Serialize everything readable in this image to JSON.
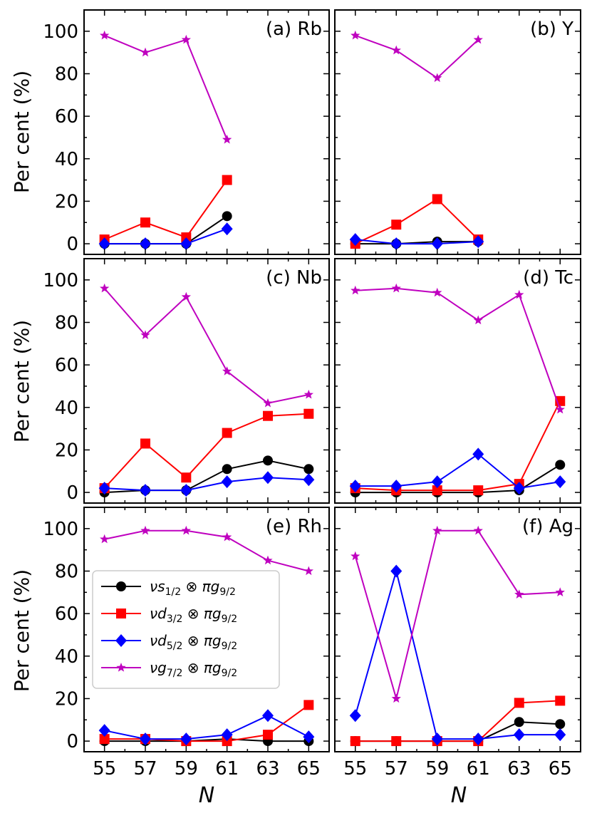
{
  "figure": {
    "xlabel": "N",
    "ylabel": "Per cent (%)"
  },
  "chart_data": [
    {
      "type": "line",
      "panel_label": "(a) Rb",
      "x": [
        55,
        57,
        59,
        61
      ],
      "ylim": [
        -5,
        110
      ],
      "xlim": [
        54,
        66
      ],
      "series": [
        {
          "name": "νs1/2 ⊗ πg9/2",
          "values": [
            0,
            0,
            0,
            13
          ]
        },
        {
          "name": "νd3/2 ⊗ πg9/2",
          "values": [
            2,
            10,
            3,
            30
          ]
        },
        {
          "name": "νd5/2 ⊗ πg9/2",
          "values": [
            0,
            0,
            0,
            7
          ]
        },
        {
          "name": "νg7/2 ⊗ πg9/2",
          "values": [
            98,
            90,
            96,
            49
          ]
        }
      ]
    },
    {
      "type": "line",
      "panel_label": "(b) Y",
      "x": [
        55,
        57,
        59,
        61
      ],
      "ylim": [
        -5,
        110
      ],
      "xlim": [
        54,
        66
      ],
      "series": [
        {
          "name": "νs1/2 ⊗ πg9/2",
          "values": [
            0,
            0,
            1,
            1
          ]
        },
        {
          "name": "νd3/2 ⊗ πg9/2",
          "values": [
            0,
            9,
            21,
            2
          ]
        },
        {
          "name": "νd5/2 ⊗ πg9/2",
          "values": [
            2,
            0,
            0,
            1
          ]
        },
        {
          "name": "νg7/2 ⊗ πg9/2",
          "values": [
            98,
            91,
            78,
            96
          ]
        }
      ]
    },
    {
      "type": "line",
      "panel_label": "(c) Nb",
      "x": [
        55,
        57,
        59,
        61,
        63,
        65
      ],
      "ylim": [
        -5,
        110
      ],
      "xlim": [
        54,
        66
      ],
      "series": [
        {
          "name": "νs1/2 ⊗ πg9/2",
          "values": [
            0,
            1,
            1,
            11,
            15,
            11
          ]
        },
        {
          "name": "νd3/2 ⊗ πg9/2",
          "values": [
            2,
            23,
            7,
            28,
            36,
            37
          ]
        },
        {
          "name": "νd5/2 ⊗ πg9/2",
          "values": [
            2,
            1,
            1,
            5,
            7,
            6
          ]
        },
        {
          "name": "νg7/2 ⊗ πg9/2",
          "values": [
            96,
            74,
            92,
            57,
            42,
            46
          ]
        }
      ]
    },
    {
      "type": "line",
      "panel_label": "(d) Tc",
      "x": [
        55,
        57,
        59,
        61,
        63,
        65
      ],
      "ylim": [
        -5,
        110
      ],
      "xlim": [
        54,
        66
      ],
      "series": [
        {
          "name": "νs1/2 ⊗ πg9/2",
          "values": [
            0,
            0,
            0,
            0,
            1,
            13
          ]
        },
        {
          "name": "νd3/2 ⊗ πg9/2",
          "values": [
            2,
            1,
            1,
            1,
            4,
            43
          ]
        },
        {
          "name": "νd5/2 ⊗ πg9/2",
          "values": [
            3,
            3,
            5,
            18,
            2,
            5
          ]
        },
        {
          "name": "νg7/2 ⊗ πg9/2",
          "values": [
            95,
            96,
            94,
            81,
            93,
            39
          ]
        }
      ]
    },
    {
      "type": "line",
      "panel_label": "(e) Rh",
      "x": [
        55,
        57,
        59,
        61,
        63,
        65
      ],
      "ylim": [
        -5,
        110
      ],
      "xlim": [
        54,
        66
      ],
      "series": [
        {
          "name": "νs1/2 ⊗ πg9/2",
          "values": [
            0,
            0,
            0,
            1,
            0,
            0
          ]
        },
        {
          "name": "νd3/2 ⊗ πg9/2",
          "values": [
            1,
            1,
            0,
            0,
            3,
            17
          ]
        },
        {
          "name": "νd5/2 ⊗ πg9/2",
          "values": [
            5,
            1,
            1,
            3,
            12,
            2
          ]
        },
        {
          "name": "νg7/2 ⊗ πg9/2",
          "values": [
            95,
            99,
            99,
            96,
            85,
            80
          ]
        }
      ]
    },
    {
      "type": "line",
      "panel_label": "(f) Ag",
      "x": [
        55,
        57,
        59,
        61,
        63,
        65
      ],
      "ylim": [
        -5,
        110
      ],
      "xlim": [
        54,
        66
      ],
      "series": [
        {
          "name": "νs1/2 ⊗ πg9/2",
          "values": [
            0,
            0,
            0,
            0,
            9,
            8
          ]
        },
        {
          "name": "νd3/2 ⊗ πg9/2",
          "values": [
            0,
            0,
            0,
            0,
            18,
            19
          ]
        },
        {
          "name": "νd5/2 ⊗ πg9/2",
          "values": [
            12,
            80,
            1,
            1,
            3,
            3
          ]
        },
        {
          "name": "νg7/2 ⊗ πg9/2",
          "values": [
            87,
            20,
            99,
            99,
            69,
            70
          ]
        }
      ]
    }
  ],
  "x_ticks": [
    55,
    57,
    59,
    61,
    63,
    65
  ],
  "y_ticks": [
    0,
    20,
    40,
    60,
    80,
    100
  ],
  "series_styles": [
    {
      "color": "#000000",
      "marker": "circle"
    },
    {
      "color": "#ff0000",
      "marker": "square"
    },
    {
      "color": "#0000ff",
      "marker": "diamond"
    },
    {
      "color": "#bf00bf",
      "marker": "star"
    }
  ],
  "legend": {
    "placement": "panel (e), center-left",
    "entries": [
      {
        "prefix": "νs",
        "sub1": "1/2",
        "mid": " ⊗ πg",
        "sub2": "9/2"
      },
      {
        "prefix": "νd",
        "sub1": "3/2",
        "mid": " ⊗ πg",
        "sub2": "9/2"
      },
      {
        "prefix": "νd",
        "sub1": "5/2",
        "mid": " ⊗ πg",
        "sub2": "9/2"
      },
      {
        "prefix": "νg",
        "sub1": "7/2",
        "mid": " ⊗ πg",
        "sub2": "9/2"
      }
    ]
  }
}
